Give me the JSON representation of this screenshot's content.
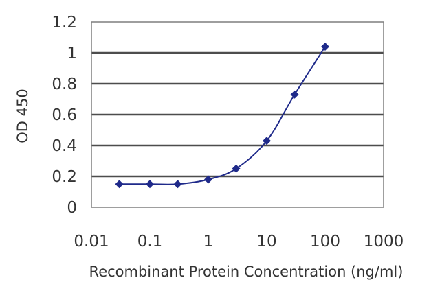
{
  "chart_data": {
    "type": "line",
    "title": "",
    "xlabel": "Recombinant Protein Concentration (ng/ml)",
    "ylabel": "OD 450",
    "x_scale": "log",
    "xlim": [
      0.01,
      1000
    ],
    "ylim": [
      0,
      1.2
    ],
    "grid": "horizontal",
    "x_tick_labels": [
      "0.01",
      "0.1",
      "1",
      "10",
      "100",
      "1000"
    ],
    "x_tick_values": [
      0.01,
      0.1,
      1,
      10,
      100,
      1000
    ],
    "y_tick_labels": [
      "0",
      "0.2",
      "0.4",
      "0.6",
      "0.8",
      "1",
      "1.2"
    ],
    "y_tick_values": [
      0,
      0.2,
      0.4,
      0.6,
      0.8,
      1.0,
      1.2
    ],
    "series": [
      {
        "x": [
          0.03,
          0.1,
          0.3,
          1,
          3,
          10,
          30,
          100
        ],
        "y": [
          0.15,
          0.15,
          0.15,
          0.18,
          0.25,
          0.43,
          0.73,
          1.04
        ]
      }
    ],
    "colors": {
      "series": "#1f2a8a",
      "plot_border": "#7f7f7f",
      "grid": "#4d4d4d",
      "text": "#333333"
    }
  }
}
